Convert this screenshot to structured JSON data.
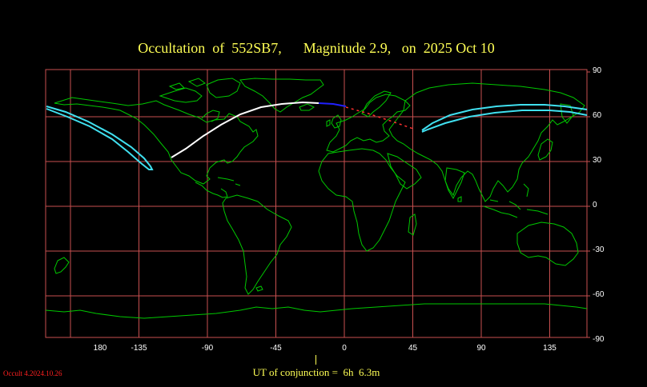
{
  "title": "Occultation  of  552SB7,      Magnitude 2.9,   on  2025 Oct 10",
  "longitude_labels": [
    "180",
    "-135",
    "-90",
    "-45",
    "0",
    "45",
    "90",
    "135"
  ],
  "latitude_labels": [
    "90",
    "60",
    "30",
    "0",
    "-30",
    "-60",
    "-90"
  ],
  "ut_text": "UT of conjunction =  6h  6.3m",
  "version": "Occult 4.2024.10.26",
  "colors": {
    "background": "#000000",
    "grid": "#c85050",
    "coast": "#00c800",
    "centerline": "#ffffff",
    "limits": "#40e0f0",
    "daylight_path": "#2020ff",
    "extension": "#ff3030",
    "title": "#ffff55"
  }
}
